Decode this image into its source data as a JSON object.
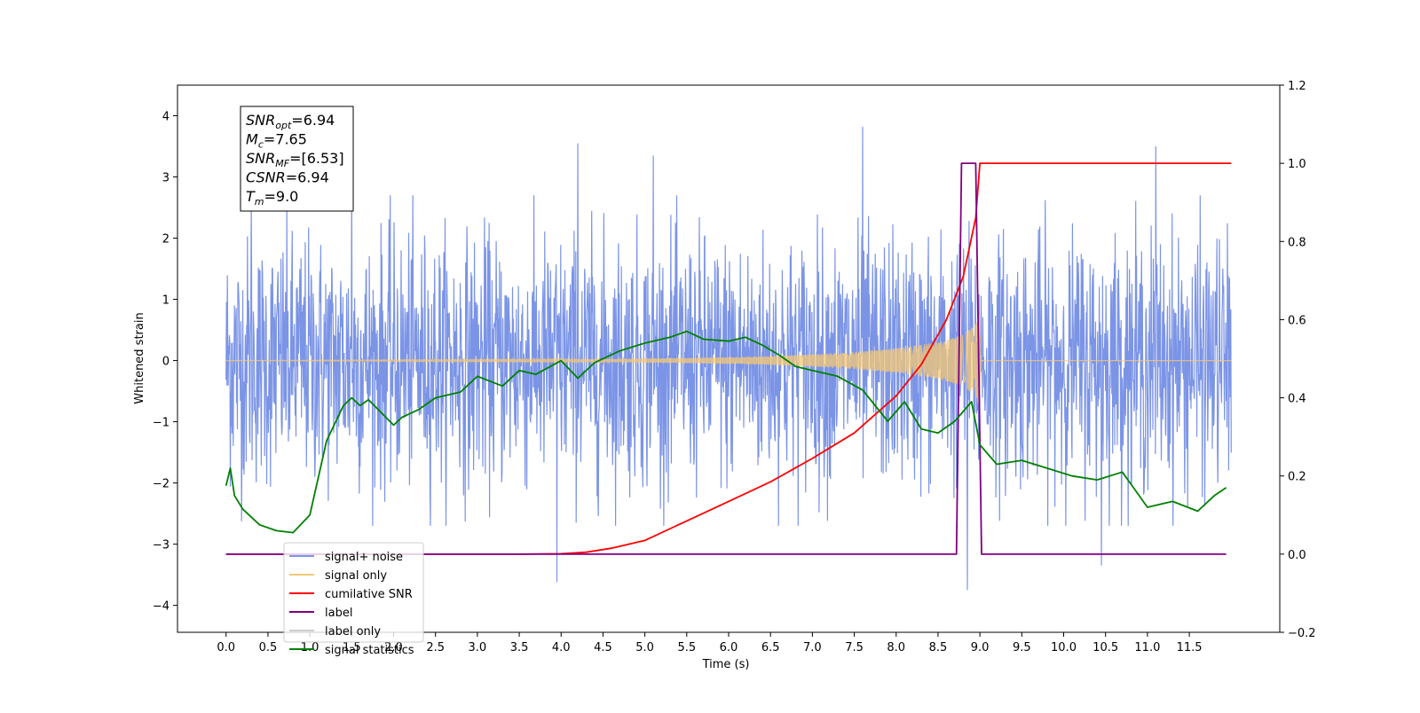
{
  "chart_data": {
    "type": "line",
    "xlabel": "Time (s)",
    "ylabel": "Whitened strain",
    "xlim": [
      -0.58,
      12.58
    ],
    "ylim": [
      -4.44,
      4.5
    ],
    "ylim_right": [
      -0.2,
      1.2
    ],
    "x_ticks": [
      "0.0",
      "0.5",
      "1.0",
      "1.5",
      "2.0",
      "2.5",
      "3.0",
      "3.5",
      "4.0",
      "4.5",
      "5.0",
      "5.5",
      "6.0",
      "6.5",
      "7.0",
      "7.5",
      "8.0",
      "8.5",
      "9.0",
      "9.5",
      "10.0",
      "10.5",
      "11.0",
      "11.5"
    ],
    "y_ticks_left": [
      "−4",
      "−3",
      "−2",
      "−1",
      "0",
      "1",
      "2",
      "3",
      "4"
    ],
    "y_ticks_right": [
      "−0.2",
      "0.0",
      "0.2",
      "0.4",
      "0.6",
      "0.8",
      "1.0",
      "1.2"
    ],
    "annotation": [
      {
        "sym": "SNR",
        "sub": "opt",
        "val": "=6.94"
      },
      {
        "sym": "M",
        "sub": "c",
        "val": "=7.65"
      },
      {
        "sym": "SNR",
        "sub": "MF",
        "val": "=[6.53]"
      },
      {
        "sym": "CSNR",
        "sub": "",
        "val": "=6.94"
      },
      {
        "sym": "T",
        "sub": "m",
        "val": "=9.0"
      }
    ],
    "legend": {
      "placement": "lower-left",
      "entries": [
        {
          "label": "signal+ noise",
          "color": "#7b94e6"
        },
        {
          "label": "signal only",
          "color": "#f5c874"
        },
        {
          "label": "cumilative SNR",
          "color": "#ff0000"
        },
        {
          "label": "label",
          "color": "#800080"
        },
        {
          "label": "label only",
          "color": "#cccccc"
        },
        {
          "label": "signal statistics",
          "color": "#008000"
        }
      ]
    },
    "series": [
      {
        "name": "signal+ noise",
        "axis": "left",
        "color": "#7b94e6",
        "description_values": {
          "x_start": 0.0,
          "x_end": 12.0,
          "std": 1.0,
          "max": 3.82,
          "min": -3.75
        },
        "peaks": [
          [
            0.3,
            2.55
          ],
          [
            1.5,
            2.9
          ],
          [
            4.2,
            3.55
          ],
          [
            5.1,
            3.35
          ],
          [
            7.6,
            3.82
          ],
          [
            8.85,
            -3.75
          ],
          [
            11.1,
            3.5
          ],
          [
            3.95,
            -3.62
          ],
          [
            10.45,
            -3.35
          ]
        ]
      },
      {
        "name": "signal only",
        "axis": "left",
        "color": "#f5c874",
        "envelope": [
          [
            0.0,
            0.0
          ],
          [
            4.5,
            0.02
          ],
          [
            5.5,
            0.04
          ],
          [
            6.5,
            0.07
          ],
          [
            7.0,
            0.1
          ],
          [
            7.5,
            0.14
          ],
          [
            8.0,
            0.2
          ],
          [
            8.5,
            0.3
          ],
          [
            8.8,
            0.42
          ],
          [
            8.95,
            0.6
          ],
          [
            9.0,
            0.75
          ],
          [
            9.01,
            0.0
          ],
          [
            12.0,
            0.0
          ]
        ]
      },
      {
        "name": "cumilative SNR",
        "axis": "right",
        "color": "#ff0000",
        "x": [
          0.0,
          3.5,
          4.0,
          4.3,
          4.6,
          5.0,
          5.5,
          6.0,
          6.5,
          7.0,
          7.5,
          8.0,
          8.3,
          8.6,
          8.8,
          8.95,
          9.0,
          12.0
        ],
        "y": [
          0.0,
          0.0,
          0.001,
          0.005,
          0.015,
          0.035,
          0.085,
          0.135,
          0.185,
          0.245,
          0.31,
          0.405,
          0.485,
          0.6,
          0.71,
          0.86,
          1.0,
          1.0
        ]
      },
      {
        "name": "label",
        "axis": "right",
        "color": "#800080",
        "x": [
          0.0,
          8.72,
          8.78,
          8.95,
          9.02,
          11.94
        ],
        "y": [
          0.0,
          0.0,
          1.0,
          1.0,
          0.0,
          0.0
        ]
      },
      {
        "name": "signal statistics",
        "axis": "right",
        "color": "#008000",
        "x": [
          0.0,
          0.05,
          0.1,
          0.2,
          0.4,
          0.6,
          0.8,
          1.0,
          1.2,
          1.4,
          1.5,
          1.6,
          1.7,
          2.0,
          2.1,
          2.3,
          2.5,
          2.8,
          3.0,
          3.3,
          3.5,
          3.7,
          4.0,
          4.2,
          4.4,
          4.7,
          5.0,
          5.3,
          5.5,
          5.7,
          6.0,
          6.2,
          6.4,
          6.6,
          6.8,
          7.0,
          7.3,
          7.6,
          7.9,
          8.1,
          8.3,
          8.5,
          8.7,
          8.9,
          9.0,
          9.2,
          9.5,
          9.8,
          10.1,
          10.4,
          10.7,
          11.0,
          11.3,
          11.6,
          11.8,
          11.94
        ],
        "y": [
          0.175,
          0.22,
          0.15,
          0.115,
          0.075,
          0.06,
          0.055,
          0.1,
          0.29,
          0.38,
          0.4,
          0.38,
          0.395,
          0.33,
          0.35,
          0.37,
          0.4,
          0.415,
          0.455,
          0.43,
          0.47,
          0.46,
          0.495,
          0.45,
          0.49,
          0.52,
          0.54,
          0.555,
          0.57,
          0.55,
          0.545,
          0.555,
          0.535,
          0.51,
          0.48,
          0.47,
          0.455,
          0.42,
          0.34,
          0.39,
          0.32,
          0.31,
          0.34,
          0.39,
          0.28,
          0.23,
          0.24,
          0.22,
          0.2,
          0.19,
          0.21,
          0.12,
          0.135,
          0.11,
          0.15,
          0.17
        ]
      }
    ]
  }
}
